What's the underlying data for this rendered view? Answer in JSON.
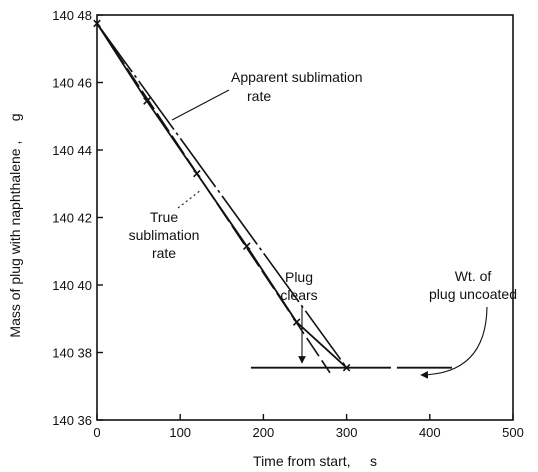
{
  "chart_data": {
    "type": "line",
    "xlabel": "Time from start,     s",
    "ylabel": "Mass of plug with naphthalene ,     g",
    "xlim": [
      0,
      500
    ],
    "ylim": [
      140.36,
      140.48
    ],
    "x_ticks": [
      0,
      100,
      200,
      300,
      400,
      500
    ],
    "x_tick_labels": [
      "0",
      "100",
      "200",
      "300",
      "400",
      "500"
    ],
    "y_ticks": [
      140.36,
      140.38,
      140.4,
      140.42,
      140.44,
      140.46,
      140.48
    ],
    "y_tick_labels": [
      "140 36",
      "140 38",
      "140 40",
      "140 42",
      "140 44",
      "140 46",
      "140 48"
    ],
    "grid": false,
    "series": [
      {
        "role": "measured",
        "x": [
          0,
          60,
          120,
          180,
          240,
          300
        ],
        "y": [
          140.4775,
          140.4545,
          140.433,
          140.4115,
          140.389,
          140.3755
        ]
      },
      {
        "role": "apparent",
        "x": [
          0,
          300
        ],
        "y": [
          140.4775,
          140.3755
        ]
      },
      {
        "role": "true",
        "x": [
          0,
          280
        ],
        "y": [
          140.4775,
          140.374
        ]
      },
      {
        "role": "uncoated",
        "x": [
          185,
          430
        ],
        "y": [
          140.3755,
          140.3755
        ]
      }
    ],
    "annotations": [
      {
        "lines": [
          "Apparent sublimation",
          "rate"
        ]
      },
      {
        "lines": [
          "True",
          "sublimation",
          "rate"
        ]
      },
      {
        "lines": [
          "Plug",
          "clears"
        ]
      },
      {
        "lines": [
          "Wt. of",
          "plug uncoated"
        ]
      }
    ]
  }
}
